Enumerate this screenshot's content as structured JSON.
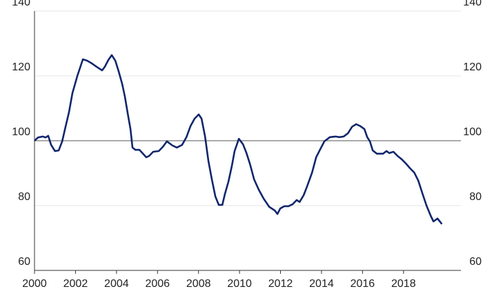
{
  "chart_data": {
    "type": "line",
    "color": "#10266b",
    "x": [
      2000.0,
      2000.17,
      2000.4,
      2000.54,
      2000.67,
      2000.81,
      2001.0,
      2001.18,
      2001.35,
      2001.52,
      2001.68,
      2001.85,
      2002.09,
      2002.36,
      2002.56,
      2002.76,
      2003.03,
      2003.3,
      2003.43,
      2003.6,
      2003.77,
      2003.94,
      2004.1,
      2004.28,
      2004.41,
      2004.55,
      2004.68,
      2004.78,
      2004.92,
      2005.12,
      2005.29,
      2005.45,
      2005.59,
      2005.79,
      2006.06,
      2006.26,
      2006.46,
      2006.73,
      2006.94,
      2007.2,
      2007.41,
      2007.61,
      2007.81,
      2008.01,
      2008.15,
      2008.32,
      2008.48,
      2008.65,
      2008.82,
      2008.99,
      2009.16,
      2009.29,
      2009.46,
      2009.63,
      2009.76,
      2009.97,
      2010.17,
      2010.34,
      2010.51,
      2010.71,
      2010.94,
      2011.18,
      2011.45,
      2011.72,
      2011.85,
      2011.99,
      2012.19,
      2012.39,
      2012.59,
      2012.79,
      2012.93,
      2013.13,
      2013.3,
      2013.54,
      2013.74,
      2013.94,
      2014.14,
      2014.41,
      2014.68,
      2014.88,
      2015.08,
      2015.29,
      2015.49,
      2015.69,
      2015.89,
      2016.09,
      2016.23,
      2016.36,
      2016.5,
      2016.7,
      2017.0,
      2017.17,
      2017.31,
      2017.51,
      2017.71,
      2017.91,
      2018.11,
      2018.32,
      2018.52,
      2018.72,
      2018.92,
      2019.12,
      2019.33,
      2019.46,
      2019.66,
      2019.87
    ],
    "values": [
      100,
      101,
      101.3,
      101,
      101.5,
      98.7,
      96.8,
      97,
      99.8,
      104.5,
      108.7,
      114.7,
      120,
      125.1,
      124.7,
      124,
      122.8,
      121.7,
      122.8,
      124.9,
      126.4,
      124.7,
      121.5,
      117.4,
      113.6,
      108.3,
      103.6,
      97.9,
      97.2,
      97.2,
      96,
      94.9,
      95.3,
      96.6,
      96.8,
      98.1,
      99.8,
      98.5,
      97.9,
      98.7,
      101.1,
      104.5,
      106.8,
      108.1,
      106.8,
      101.3,
      93.8,
      88.1,
      82.8,
      80.2,
      80.2,
      83.6,
      87.4,
      92.3,
      96.8,
      100.6,
      98.9,
      96.2,
      92.8,
      88.1,
      84.9,
      82.1,
      79.6,
      78.5,
      77.4,
      79.1,
      79.8,
      79.8,
      80.4,
      81.7,
      81.1,
      83.2,
      86,
      90.2,
      94.9,
      97.4,
      99.8,
      101.1,
      101.3,
      101.1,
      101.3,
      102.3,
      104.3,
      105.1,
      104.5,
      103.6,
      101.1,
      99.8,
      97,
      96,
      96,
      96.8,
      96.2,
      96.6,
      95.3,
      94.3,
      93,
      91.5,
      90.2,
      87.7,
      83.8,
      80,
      76.8,
      75.1,
      76,
      74.3
    ],
    "xlim": [
      2000,
      2020.8
    ],
    "xticks": [
      2000,
      2002,
      2004,
      2006,
      2008,
      2010,
      2012,
      2014,
      2016,
      2018
    ],
    "ylim": [
      60,
      140
    ],
    "yticks": [
      60,
      80,
      100,
      120,
      140
    ],
    "y2lim": [
      60,
      140
    ],
    "y2ticks": [
      60,
      80,
      100,
      120,
      140
    ],
    "reference_line": 100,
    "grid": true
  }
}
